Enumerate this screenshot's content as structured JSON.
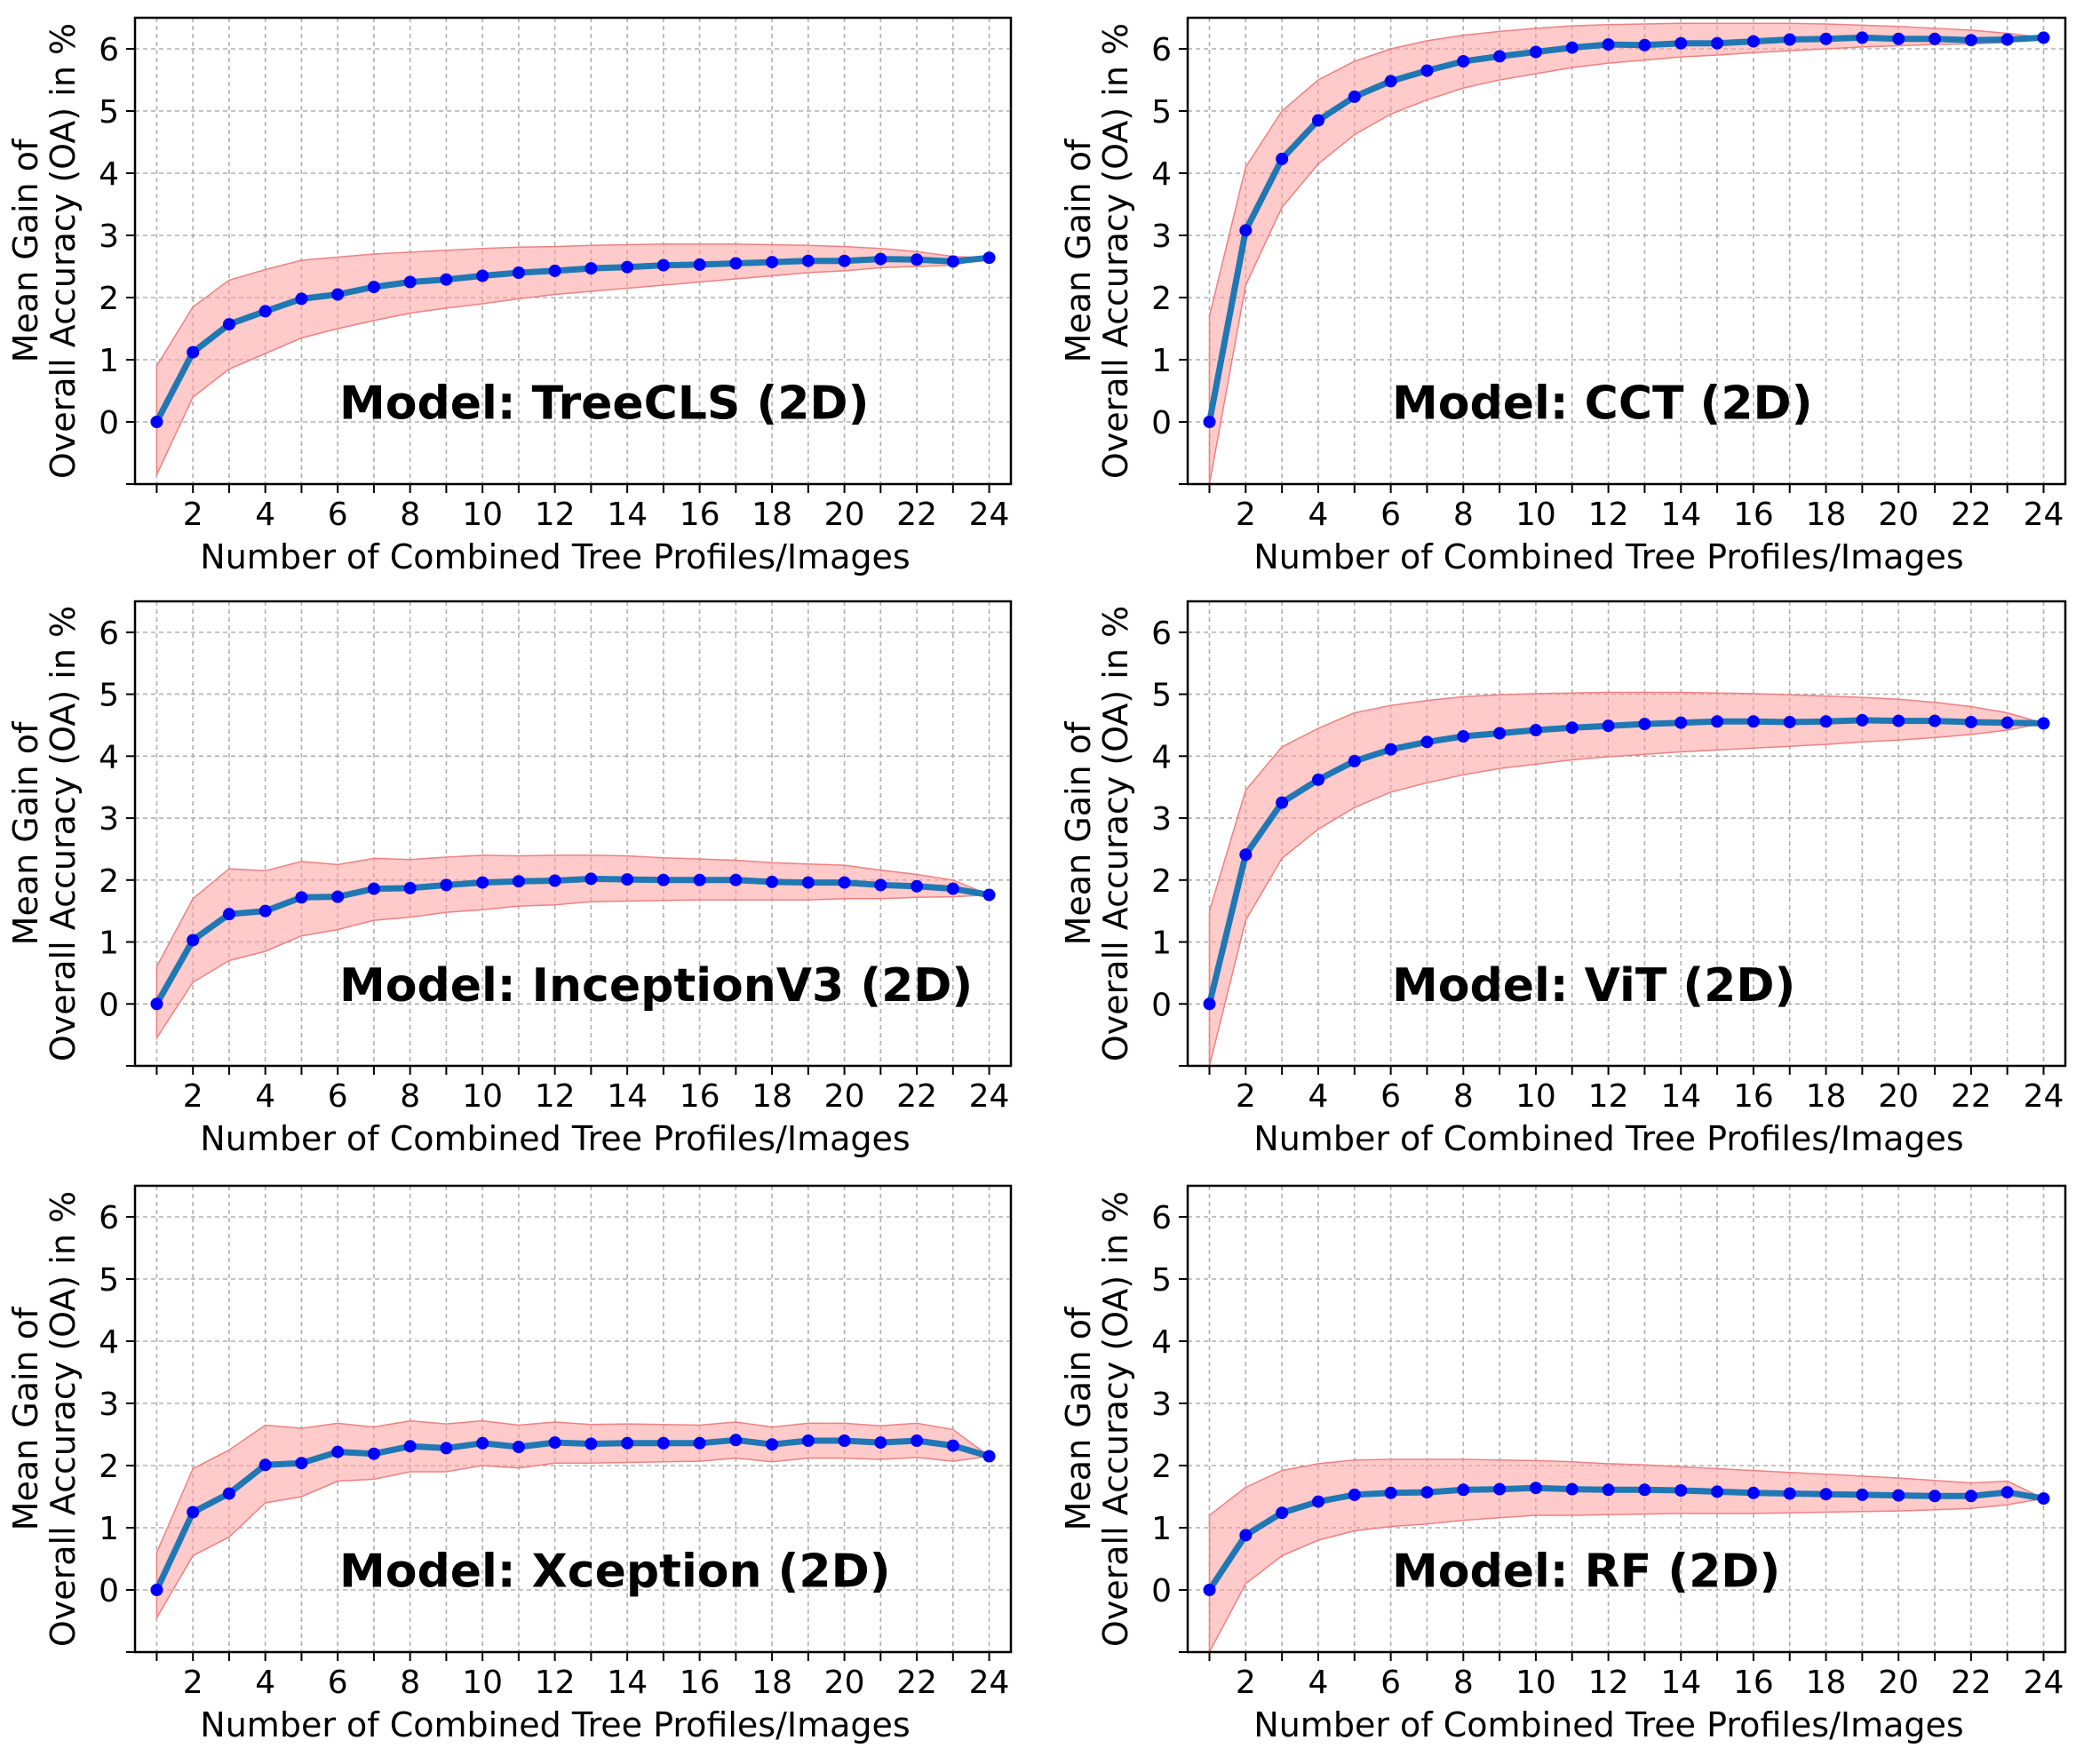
{
  "figure": {
    "shared_xlabel": "Number of Combined Tree Profiles/Images"
  },
  "chart_data": [
    {
      "type": "line",
      "model_label": "Model: TreeCLS (2D)",
      "ylabel_line1": "Mean Gain of",
      "ylabel_line2": "Overall Accuracy (OA) in %",
      "xlabel": "Number of Combined Tree Profiles/Images",
      "xlim": [
        0.4,
        24.6
      ],
      "ylim": [
        -1,
        6.5
      ],
      "xticks": [
        2,
        4,
        6,
        8,
        10,
        12,
        14,
        16,
        18,
        20,
        22,
        24
      ],
      "yticks": [
        0,
        1,
        2,
        3,
        4,
        5,
        6
      ],
      "x": [
        1,
        2,
        3,
        4,
        5,
        6,
        7,
        8,
        9,
        10,
        11,
        12,
        13,
        14,
        15,
        16,
        17,
        18,
        19,
        20,
        21,
        22,
        23,
        24
      ],
      "values": [
        0,
        1.12,
        1.57,
        1.78,
        1.98,
        2.05,
        2.17,
        2.25,
        2.29,
        2.35,
        2.4,
        2.43,
        2.47,
        2.49,
        2.52,
        2.53,
        2.55,
        2.57,
        2.59,
        2.59,
        2.62,
        2.61,
        2.58,
        2.64
      ],
      "lower": [
        -0.85,
        0.4,
        0.85,
        1.1,
        1.35,
        1.5,
        1.63,
        1.75,
        1.83,
        1.9,
        1.98,
        2.05,
        2.1,
        2.15,
        2.2,
        2.25,
        2.3,
        2.35,
        2.4,
        2.43,
        2.48,
        2.5,
        2.52,
        2.64
      ],
      "upper": [
        0.9,
        1.85,
        2.28,
        2.45,
        2.6,
        2.65,
        2.7,
        2.73,
        2.76,
        2.79,
        2.81,
        2.82,
        2.84,
        2.85,
        2.86,
        2.86,
        2.86,
        2.85,
        2.84,
        2.82,
        2.79,
        2.74,
        2.66,
        2.64
      ]
    },
    {
      "type": "line",
      "model_label": "Model: CCT (2D)",
      "ylabel_line1": "Mean Gain of",
      "ylabel_line2": "Overall Accuracy (OA) in %",
      "xlabel": "Number of Combined Tree Profiles/Images",
      "xlim": [
        0.4,
        24.6
      ],
      "ylim": [
        -1,
        6.5
      ],
      "xticks": [
        2,
        4,
        6,
        8,
        10,
        12,
        14,
        16,
        18,
        20,
        22,
        24
      ],
      "yticks": [
        0,
        1,
        2,
        3,
        4,
        5,
        6
      ],
      "x": [
        1,
        2,
        3,
        4,
        5,
        6,
        7,
        8,
        9,
        10,
        11,
        12,
        13,
        14,
        15,
        16,
        17,
        18,
        19,
        20,
        21,
        22,
        23,
        24
      ],
      "values": [
        0,
        3.08,
        4.23,
        4.85,
        5.23,
        5.48,
        5.65,
        5.8,
        5.88,
        5.95,
        6.02,
        6.07,
        6.06,
        6.09,
        6.09,
        6.12,
        6.15,
        6.16,
        6.18,
        6.16,
        6.16,
        6.14,
        6.15,
        6.18
      ],
      "lower": [
        -1,
        2.2,
        3.45,
        4.15,
        4.62,
        4.95,
        5.18,
        5.37,
        5.5,
        5.6,
        5.7,
        5.77,
        5.82,
        5.87,
        5.9,
        5.94,
        5.97,
        6.0,
        6.03,
        6.05,
        6.07,
        6.08,
        6.1,
        6.18
      ],
      "upper": [
        1.7,
        4.1,
        5.0,
        5.5,
        5.8,
        6.0,
        6.13,
        6.22,
        6.28,
        6.33,
        6.37,
        6.39,
        6.4,
        6.41,
        6.41,
        6.41,
        6.41,
        6.4,
        6.38,
        6.36,
        6.33,
        6.3,
        6.25,
        6.18
      ]
    },
    {
      "type": "line",
      "model_label": "Model: InceptionV3 (2D)",
      "ylabel_line1": "Mean Gain of",
      "ylabel_line2": "Overall Accuracy (OA) in %",
      "xlabel": "Number of Combined Tree Profiles/Images",
      "xlim": [
        0.4,
        24.6
      ],
      "ylim": [
        -1,
        6.5
      ],
      "xticks": [
        2,
        4,
        6,
        8,
        10,
        12,
        14,
        16,
        18,
        20,
        22,
        24
      ],
      "yticks": [
        0,
        1,
        2,
        3,
        4,
        5,
        6
      ],
      "x": [
        1,
        2,
        3,
        4,
        5,
        6,
        7,
        8,
        9,
        10,
        11,
        12,
        13,
        14,
        15,
        16,
        17,
        18,
        19,
        20,
        21,
        22,
        23,
        24
      ],
      "values": [
        0,
        1.03,
        1.45,
        1.5,
        1.72,
        1.73,
        1.86,
        1.87,
        1.92,
        1.96,
        1.98,
        1.99,
        2.02,
        2.01,
        2.0,
        2.0,
        2.0,
        1.97,
        1.96,
        1.96,
        1.92,
        1.9,
        1.86,
        1.76
      ],
      "lower": [
        -0.55,
        0.35,
        0.7,
        0.85,
        1.1,
        1.2,
        1.35,
        1.4,
        1.48,
        1.52,
        1.58,
        1.6,
        1.65,
        1.66,
        1.67,
        1.68,
        1.68,
        1.68,
        1.68,
        1.7,
        1.7,
        1.72,
        1.73,
        1.76
      ],
      "upper": [
        0.6,
        1.7,
        2.18,
        2.15,
        2.3,
        2.25,
        2.35,
        2.33,
        2.37,
        2.4,
        2.39,
        2.4,
        2.4,
        2.39,
        2.36,
        2.34,
        2.32,
        2.28,
        2.26,
        2.24,
        2.16,
        2.09,
        2.0,
        1.76
      ]
    },
    {
      "type": "line",
      "model_label": "Model: ViT (2D)",
      "ylabel_line1": "Mean Gain of",
      "ylabel_line2": "Overall Accuracy (OA) in %",
      "xlabel": "Number of Combined Tree Profiles/Images",
      "xlim": [
        0.4,
        24.6
      ],
      "ylim": [
        -1,
        6.5
      ],
      "xticks": [
        2,
        4,
        6,
        8,
        10,
        12,
        14,
        16,
        18,
        20,
        22,
        24
      ],
      "yticks": [
        0,
        1,
        2,
        3,
        4,
        5,
        6
      ],
      "x": [
        1,
        2,
        3,
        4,
        5,
        6,
        7,
        8,
        9,
        10,
        11,
        12,
        13,
        14,
        15,
        16,
        17,
        18,
        19,
        20,
        21,
        22,
        23,
        24
      ],
      "values": [
        0,
        2.41,
        3.25,
        3.62,
        3.92,
        4.11,
        4.23,
        4.32,
        4.37,
        4.42,
        4.46,
        4.49,
        4.52,
        4.54,
        4.56,
        4.56,
        4.55,
        4.56,
        4.58,
        4.57,
        4.57,
        4.55,
        4.54,
        4.53
      ],
      "lower": [
        -1,
        1.35,
        2.35,
        2.82,
        3.17,
        3.42,
        3.57,
        3.7,
        3.8,
        3.87,
        3.94,
        3.99,
        4.03,
        4.07,
        4.1,
        4.13,
        4.16,
        4.19,
        4.23,
        4.26,
        4.3,
        4.35,
        4.42,
        4.53
      ],
      "upper": [
        1.5,
        3.45,
        4.15,
        4.45,
        4.7,
        4.82,
        4.9,
        4.96,
        4.99,
        5.01,
        5.02,
        5.03,
        5.03,
        5.03,
        5.02,
        5.01,
        4.99,
        4.97,
        4.95,
        4.92,
        4.87,
        4.8,
        4.7,
        4.53
      ]
    },
    {
      "type": "line",
      "model_label": "Model: Xception (2D)",
      "ylabel_line1": "Mean Gain of",
      "ylabel_line2": "Overall Accuracy (OA) in %",
      "xlabel": "Number of Combined Tree Profiles/Images",
      "xlim": [
        0.4,
        24.6
      ],
      "ylim": [
        -1,
        6.5
      ],
      "xticks": [
        2,
        4,
        6,
        8,
        10,
        12,
        14,
        16,
        18,
        20,
        22,
        24
      ],
      "yticks": [
        0,
        1,
        2,
        3,
        4,
        5,
        6
      ],
      "x": [
        1,
        2,
        3,
        4,
        5,
        6,
        7,
        8,
        9,
        10,
        11,
        12,
        13,
        14,
        15,
        16,
        17,
        18,
        19,
        20,
        21,
        22,
        23,
        24
      ],
      "values": [
        0,
        1.25,
        1.55,
        2.01,
        2.04,
        2.22,
        2.19,
        2.31,
        2.28,
        2.36,
        2.3,
        2.37,
        2.35,
        2.36,
        2.36,
        2.36,
        2.41,
        2.34,
        2.4,
        2.4,
        2.37,
        2.4,
        2.32,
        2.15
      ],
      "lower": [
        -0.45,
        0.55,
        0.85,
        1.4,
        1.5,
        1.75,
        1.78,
        1.9,
        1.9,
        2.0,
        1.96,
        2.04,
        2.04,
        2.05,
        2.06,
        2.07,
        2.12,
        2.06,
        2.12,
        2.12,
        2.1,
        2.13,
        2.07,
        2.15
      ],
      "upper": [
        0.6,
        1.95,
        2.25,
        2.65,
        2.6,
        2.68,
        2.62,
        2.72,
        2.67,
        2.72,
        2.65,
        2.7,
        2.66,
        2.67,
        2.66,
        2.65,
        2.7,
        2.62,
        2.68,
        2.68,
        2.64,
        2.68,
        2.58,
        2.15
      ]
    },
    {
      "type": "line",
      "model_label": "Model: RF (2D)",
      "ylabel_line1": "Mean Gain of",
      "ylabel_line2": "Overall Accuracy (OA) in %",
      "xlabel": "Number of Combined Tree Profiles/Images",
      "xlim": [
        0.4,
        24.6
      ],
      "ylim": [
        -1,
        6.5
      ],
      "xticks": [
        2,
        4,
        6,
        8,
        10,
        12,
        14,
        16,
        18,
        20,
        22,
        24
      ],
      "yticks": [
        0,
        1,
        2,
        3,
        4,
        5,
        6
      ],
      "x": [
        1,
        2,
        3,
        4,
        5,
        6,
        7,
        8,
        9,
        10,
        11,
        12,
        13,
        14,
        15,
        16,
        17,
        18,
        19,
        20,
        21,
        22,
        23,
        24
      ],
      "values": [
        0,
        0.88,
        1.24,
        1.42,
        1.53,
        1.56,
        1.57,
        1.61,
        1.62,
        1.64,
        1.62,
        1.61,
        1.61,
        1.6,
        1.58,
        1.56,
        1.55,
        1.54,
        1.53,
        1.52,
        1.51,
        1.51,
        1.57,
        1.47
      ],
      "lower": [
        -1,
        0.1,
        0.55,
        0.8,
        0.95,
        1.02,
        1.06,
        1.12,
        1.16,
        1.2,
        1.2,
        1.21,
        1.22,
        1.23,
        1.23,
        1.23,
        1.24,
        1.25,
        1.26,
        1.27,
        1.29,
        1.31,
        1.37,
        1.47
      ],
      "upper": [
        1.2,
        1.65,
        1.92,
        2.03,
        2.09,
        2.1,
        2.1,
        2.1,
        2.09,
        2.08,
        2.06,
        2.03,
        2.01,
        1.98,
        1.95,
        1.92,
        1.89,
        1.86,
        1.83,
        1.8,
        1.76,
        1.72,
        1.75,
        1.47
      ]
    }
  ]
}
